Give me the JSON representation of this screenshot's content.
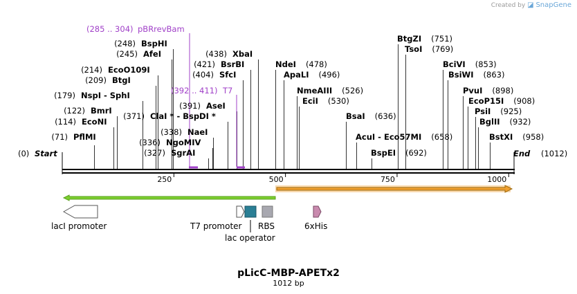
{
  "credit": {
    "prefix": "Created by",
    "brand": "SnapGene"
  },
  "title": "pLicC-MBP-APETx2",
  "subtitle": "1012 bp",
  "scale": {
    "total": 1012,
    "ticks": [
      "250",
      "500",
      "750",
      "1000"
    ],
    "tick_values": [
      250,
      500,
      750,
      1000
    ]
  },
  "ends": {
    "start": "Start",
    "start_pos": "(0)",
    "end": "End",
    "end_pos": "(1012)"
  },
  "primers": [
    {
      "pos": "(285 .. 304)",
      "name": "pBRrevBam",
      "from": 285,
      "to": 304
    },
    {
      "pos": "(392 .. 411)",
      "name": "T7",
      "from": 392,
      "to": 411
    }
  ],
  "sites": [
    {
      "pos": "(71)",
      "name": "PflMI",
      "bp": 71
    },
    {
      "pos": "(114)",
      "name": "EcoNI",
      "bp": 114
    },
    {
      "pos": "(122)",
      "name": "BmrI",
      "bp": 122
    },
    {
      "pos": "(179)",
      "name": "NspI  -  SphI",
      "bp": 179
    },
    {
      "pos": "(209)",
      "name": "BtgI",
      "bp": 209
    },
    {
      "pos": "(214)",
      "name": "EcoO109I",
      "bp": 214
    },
    {
      "pos": "(245)",
      "name": "AfeI",
      "bp": 245
    },
    {
      "pos": "(248)",
      "name": "BspHI",
      "bp": 248
    },
    {
      "pos": "(327)",
      "name": "SgrAI",
      "bp": 327
    },
    {
      "pos": "(336)",
      "name": "NgoMIV",
      "bp": 336
    },
    {
      "pos": "(338)",
      "name": "NaeI",
      "bp": 338
    },
    {
      "pos": "(371)",
      "name": "ClaI * - BspDI *",
      "bp": 371
    },
    {
      "pos": "(391)",
      "name": "AseI",
      "bp": 391
    },
    {
      "pos": "(404)",
      "name": "SfcI",
      "bp": 404
    },
    {
      "pos": "(421)",
      "name": "BsrBI",
      "bp": 421
    },
    {
      "pos": "(438)",
      "name": "XbaI",
      "bp": 438
    },
    {
      "pos": "(478)",
      "name": "NdeI",
      "bp": 478
    },
    {
      "pos": "(496)",
      "name": "ApaLI",
      "bp": 496
    },
    {
      "pos": "(526)",
      "name": "NmeAIII",
      "bp": 526
    },
    {
      "pos": "(530)",
      "name": "EciI",
      "bp": 530
    },
    {
      "pos": "(636)",
      "name": "BsaI",
      "bp": 636
    },
    {
      "pos": "(658)",
      "name": "AcuI  - Eco57MI",
      "bp": 658
    },
    {
      "pos": "(692)",
      "name": "BspEI",
      "bp": 692
    },
    {
      "pos": "(751)",
      "name": "BtgZI",
      "bp": 751
    },
    {
      "pos": "(769)",
      "name": "TsoI",
      "bp": 769
    },
    {
      "pos": "(853)",
      "name": "BciVI",
      "bp": 853
    },
    {
      "pos": "(863)",
      "name": "BsiWI",
      "bp": 863
    },
    {
      "pos": "(898)",
      "name": "PvuI",
      "bp": 898
    },
    {
      "pos": "(908)",
      "name": "EcoP15I",
      "bp": 908
    },
    {
      "pos": "(925)",
      "name": "PsiI",
      "bp": 925
    },
    {
      "pos": "(932)",
      "name": "BglII",
      "bp": 932
    },
    {
      "pos": "(958)",
      "name": "BstXI",
      "bp": 958
    }
  ],
  "features": [
    {
      "name": "lacI promoter",
      "color": "#ffffff"
    },
    {
      "name": "T7 promoter",
      "color": "#ffffff"
    },
    {
      "name": "lac operator",
      "color": "#2a7f95"
    },
    {
      "name": "RBS",
      "color": "#a8a8b0"
    },
    {
      "name": "6xHis",
      "color": "#c98aae"
    }
  ],
  "colors": {
    "primer": "#a040c8",
    "green_arrow": "#7ccf2f",
    "orange_arrow": "#f0a030"
  }
}
